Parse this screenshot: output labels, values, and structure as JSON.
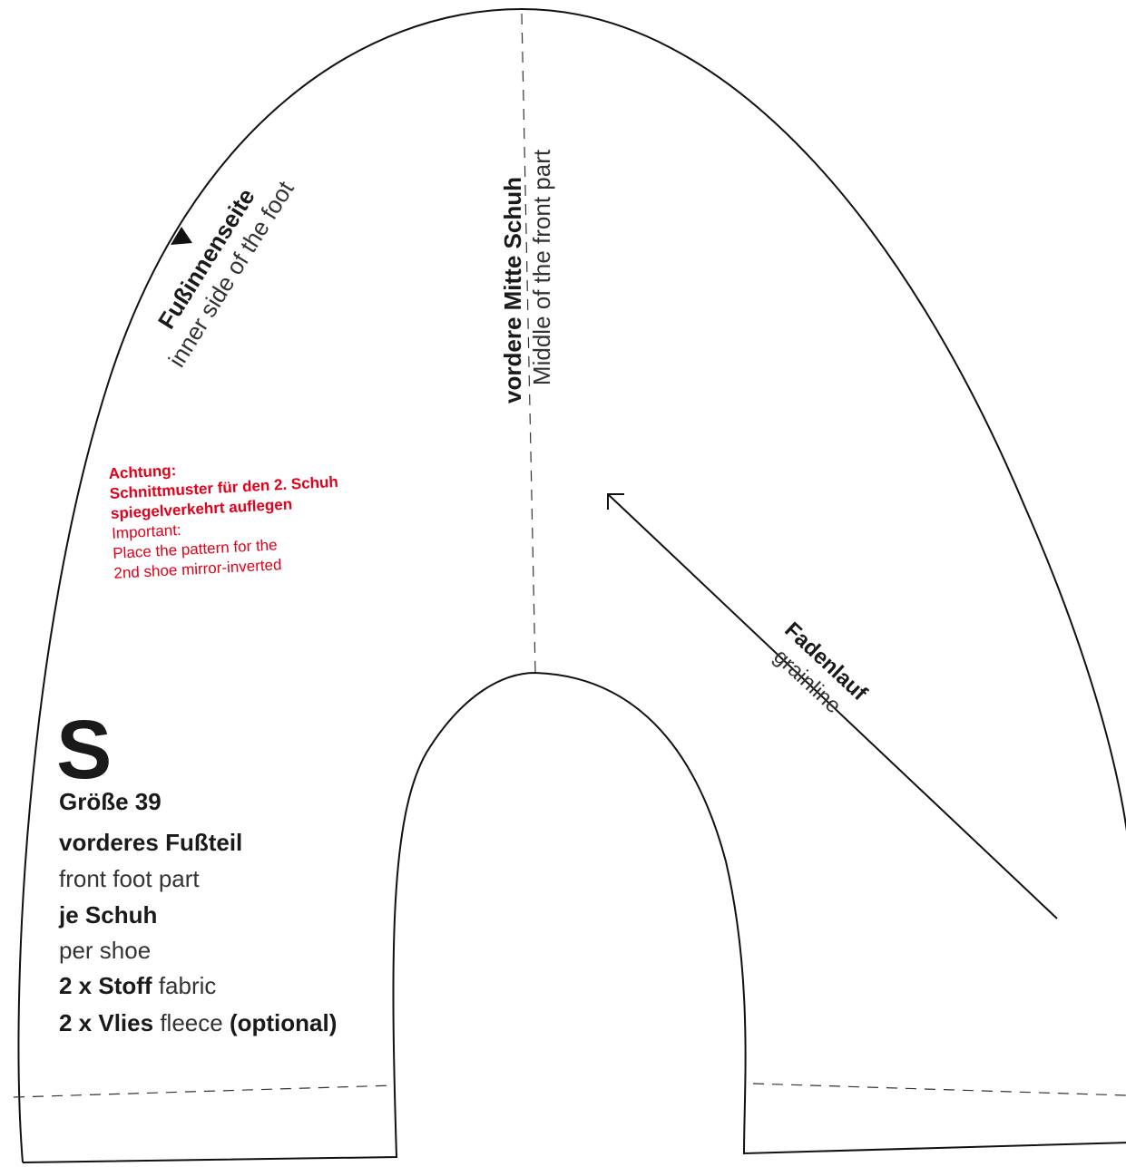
{
  "inner_side": {
    "de": "Fußinnenseite",
    "en": "inner side of the foot"
  },
  "front_middle": {
    "de": "vordere Mitte Schuh",
    "en": "Middle of the front part"
  },
  "note": {
    "de": [
      "Achtung:",
      "Schnittmuster für den 2. Schuh",
      "spiegelverkehrt auflegen"
    ],
    "en": [
      "Important:",
      "Place the pattern for the",
      "2nd shoe mirror-inverted"
    ]
  },
  "grainline": {
    "de": "Fadenlauf",
    "en": "grainline"
  },
  "info": {
    "size_letter": "S",
    "size": "Größe 39",
    "part_de": "vorderes Fußteil",
    "part_en": "front foot part",
    "per_de": "je Schuh",
    "per_en": "per shoe",
    "fabric_de": "2 x Stoff",
    "fabric_en": "fabric",
    "fleece_de": "2 x Vlies",
    "fleece_en": "fleece",
    "optional": "(optional)"
  }
}
